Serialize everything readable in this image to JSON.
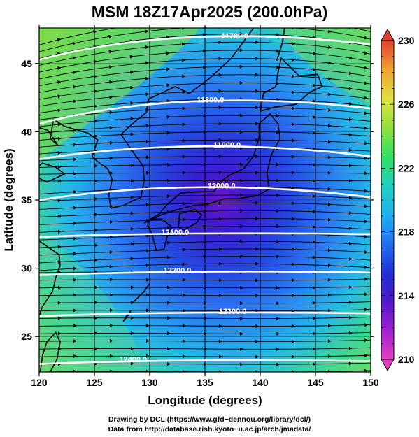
{
  "title": "MSM 18Z17Apr2025 (200.0hPa)",
  "x_axis": {
    "label": "Longitude (degrees)",
    "ticks": [
      120,
      125,
      130,
      135,
      140,
      145,
      150
    ],
    "range": [
      120,
      150
    ]
  },
  "y_axis": {
    "label": "Latitude  (degrees)",
    "ticks": [
      25,
      30,
      35,
      40,
      45
    ],
    "range": [
      22.4,
      47.6
    ]
  },
  "colorbar": {
    "ticks": [
      210,
      214,
      218,
      222,
      226,
      230
    ],
    "range": [
      210,
      230
    ],
    "colors": [
      "#e040c0",
      "#a020d0",
      "#5018c8",
      "#2030d8",
      "#2070f0",
      "#20b0f0",
      "#20d0c0",
      "#30e060",
      "#90e040",
      "#e0e040",
      "#f0a030",
      "#e04030"
    ]
  },
  "contours": [
    {
      "label": "11700.0",
      "lat": 46.2
    },
    {
      "label": "11800.0",
      "lat": 41.5
    },
    {
      "label": "11900.0",
      "lat": 38.5
    },
    {
      "label": "12000.0",
      "lat": 35.5
    },
    {
      "label": "12100.0",
      "lat": 32.8
    },
    {
      "label": "12200.0",
      "lat": 30.0
    },
    {
      "label": "12300.0",
      "lat": 27.0
    },
    {
      "label": "12400.0",
      "lat": 23.5
    }
  ],
  "credits": {
    "line1": "Drawing by DCL (https://www.gfd−dennou.org/library/dcl/)",
    "line2": "Data from http://database.rish.kyoto−u.ac.jp/arch/jmadata/"
  }
}
